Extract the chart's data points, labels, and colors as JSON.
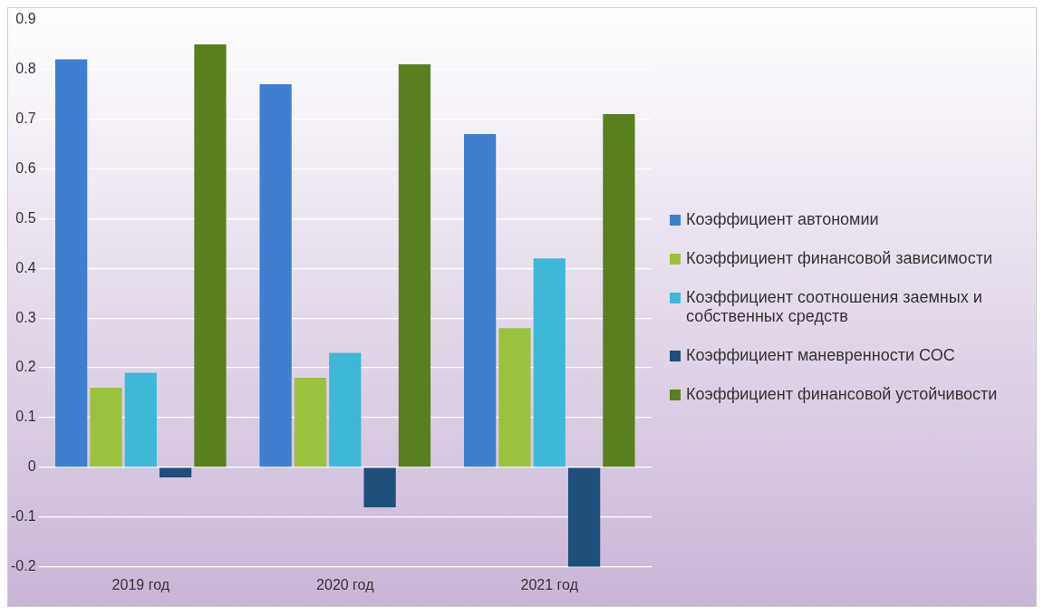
{
  "chart_data": {
    "type": "bar",
    "categories": [
      "2019 год",
      "2020 год",
      "2021 год"
    ],
    "series": [
      {
        "name": "Коэффициент автономии",
        "color": "#3f7fd0",
        "values": [
          0.82,
          0.77,
          0.67
        ]
      },
      {
        "name": "Коэффициент финансовой зависимости",
        "color": "#9bc23c",
        "values": [
          0.16,
          0.18,
          0.28
        ]
      },
      {
        "name": "Коэффициент соотношения заемных и собственных средств",
        "color": "#3fb8d8",
        "values": [
          0.19,
          0.23,
          0.42
        ]
      },
      {
        "name": "Коэффициент маневренности СОС",
        "color": "#1f4e79",
        "values": [
          -0.02,
          -0.08,
          -0.2
        ]
      },
      {
        "name": "Коэффициент финансовой устойчивости",
        "color": "#5a7f1f",
        "values": [
          0.85,
          0.81,
          0.71
        ]
      }
    ],
    "ylim": [
      -0.2,
      0.9
    ],
    "yticks": [
      -0.2,
      -0.1,
      0,
      0.1,
      0.2,
      0.3,
      0.4,
      0.5,
      0.6,
      0.7,
      0.8,
      0.9
    ],
    "grid": "y",
    "legend": "right"
  }
}
